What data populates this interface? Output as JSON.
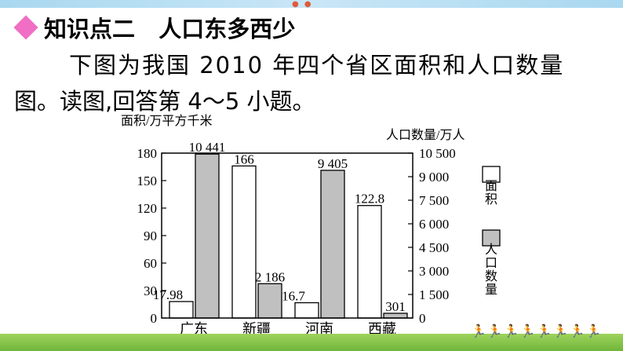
{
  "heading": {
    "text": "知识点二   人口东多西少"
  },
  "question": {
    "line1": "下图为我国 2010 年四个省区面积和人口数量",
    "line2": "图。读图,回答第 4～5 小题。"
  },
  "chart_data": {
    "type": "bar",
    "left_axis_title": "面积/万平方千米",
    "right_axis_title": "人口数量/万人",
    "categories": [
      "广东",
      "新疆",
      "河南",
      "西藏"
    ],
    "series": [
      {
        "name": "面积",
        "axis": "left",
        "color": "#ffffff",
        "values": [
          17.98,
          166,
          16.7,
          122.8
        ],
        "labels": [
          "17.98",
          "166",
          "16.7",
          "122.8"
        ]
      },
      {
        "name": "人口数量",
        "axis": "right",
        "color": "#c0c0c0",
        "values": [
          10441,
          2186,
          9405,
          301
        ],
        "labels": [
          "10 441",
          "2 186",
          "9 405",
          "301"
        ]
      }
    ],
    "left_axis": {
      "min": 0,
      "max": 180,
      "ticks": [
        "0",
        "30",
        "60",
        "90",
        "120",
        "150",
        "180"
      ]
    },
    "right_axis": {
      "min": 0,
      "max": 10500,
      "ticks": [
        "0",
        "1 500",
        "3 000",
        "4 500",
        "6 000",
        "7 500",
        "9 000",
        "10 500"
      ]
    },
    "legend": {
      "placement": "right"
    }
  }
}
